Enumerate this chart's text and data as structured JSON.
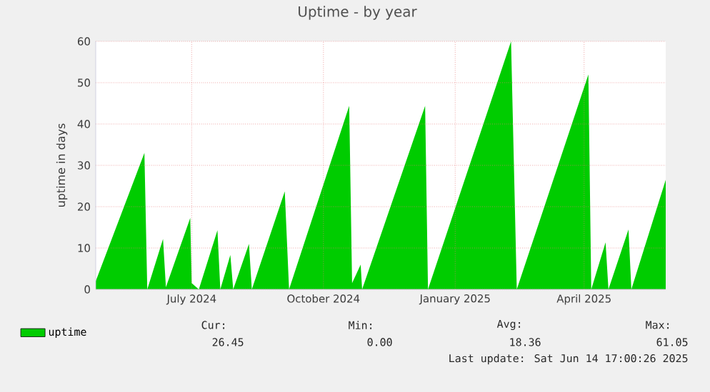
{
  "chart_data": {
    "type": "area",
    "title": "Uptime - by year",
    "ylabel": "uptime in days",
    "x": [
      "2024-05-12",
      "2024-06-15",
      "2024-06-17",
      "2024-06-28",
      "2024-06-30",
      "2024-07-17",
      "2024-07-18",
      "2024-07-23",
      "2024-08-05",
      "2024-08-07",
      "2024-08-14",
      "2024-08-16",
      "2024-08-27",
      "2024-08-29",
      "2024-09-21",
      "2024-09-24",
      "2024-11-05",
      "2024-11-07",
      "2024-11-13",
      "2024-11-14",
      "2024-12-28",
      "2024-12-30",
      "2025-02-26",
      "2025-03-02",
      "2025-04-21",
      "2025-04-23",
      "2025-05-03",
      "2025-05-05",
      "2025-05-19",
      "2025-05-21",
      "2025-06-14"
    ],
    "series": [
      {
        "name": "uptime",
        "color": "#00cc00",
        "values": [
          2,
          33,
          0,
          12.2,
          0.5,
          17.3,
          1.5,
          0,
          14.3,
          0,
          8.3,
          0,
          11,
          0,
          23.7,
          0,
          44.4,
          1.5,
          6,
          0,
          44.4,
          0,
          60,
          0,
          52,
          0,
          11.4,
          0,
          14.5,
          0,
          26.5
        ]
      }
    ],
    "xlim": [
      "2024-05-12",
      "2025-06-14"
    ],
    "xticks": [
      {
        "value": "2024-07-18",
        "label": "July 2024"
      },
      {
        "value": "2024-10-18",
        "label": "October 2024"
      },
      {
        "value": "2025-01-18",
        "label": "January 2025"
      },
      {
        "value": "2025-04-18",
        "label": "April 2025"
      }
    ],
    "ylim": [
      0,
      60
    ],
    "yticks": [
      0,
      10,
      20,
      30,
      40,
      50,
      60
    ],
    "grid": true,
    "legend": "bottom",
    "annotations": [
      "Cur:",
      "26.45",
      "Min:",
      "0.00",
      "Avg:",
      "18.36",
      "Max:",
      "61.05",
      "Last update: Sat Jun 14 17:00:26 2025"
    ]
  }
}
